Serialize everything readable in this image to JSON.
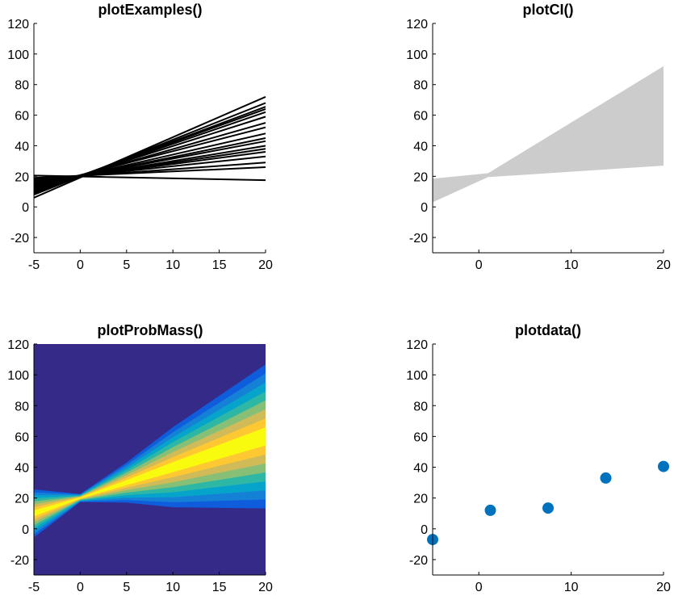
{
  "chart_data": [
    {
      "type": "line",
      "title": "plotExamples()",
      "xlim": [
        -5,
        20
      ],
      "ylim": [
        -30,
        120
      ],
      "xticks": [
        -5,
        0,
        5,
        10,
        15,
        20
      ],
      "yticks": [
        -20,
        0,
        20,
        40,
        60,
        80,
        100,
        120
      ],
      "line_color": "#000000",
      "series": [
        {
          "x": [
            -5,
            20
          ],
          "y": [
            20.5,
            17.5
          ]
        },
        {
          "x": [
            -5,
            20
          ],
          "y": [
            19,
            26
          ]
        },
        {
          "x": [
            -5,
            20
          ],
          "y": [
            18,
            29
          ]
        },
        {
          "x": [
            -5,
            20
          ],
          "y": [
            17,
            33
          ]
        },
        {
          "x": [
            -5,
            20
          ],
          "y": [
            16,
            36
          ]
        },
        {
          "x": [
            -5,
            20
          ],
          "y": [
            15.5,
            38
          ]
        },
        {
          "x": [
            -5,
            20
          ],
          "y": [
            15,
            40
          ]
        },
        {
          "x": [
            -5,
            20
          ],
          "y": [
            14.5,
            43
          ]
        },
        {
          "x": [
            -5,
            20
          ],
          "y": [
            14,
            45
          ]
        },
        {
          "x": [
            -5,
            20
          ],
          "y": [
            13.5,
            48
          ]
        },
        {
          "x": [
            -5,
            20
          ],
          "y": [
            13,
            52
          ]
        },
        {
          "x": [
            -5,
            20
          ],
          "y": [
            12,
            55
          ]
        },
        {
          "x": [
            -5,
            20
          ],
          "y": [
            11,
            59
          ]
        },
        {
          "x": [
            -5,
            20
          ],
          "y": [
            10,
            62
          ]
        },
        {
          "x": [
            -5,
            20
          ],
          "y": [
            9.5,
            64
          ]
        },
        {
          "x": [
            -5,
            20
          ],
          "y": [
            9,
            65.5
          ]
        },
        {
          "x": [
            -5,
            20
          ],
          "y": [
            8,
            68
          ]
        },
        {
          "x": [
            -5,
            20
          ],
          "y": [
            6,
            72
          ]
        }
      ]
    },
    {
      "type": "area",
      "title": "plotCI()",
      "xlim": [
        -5,
        20
      ],
      "ylim": [
        -30,
        120
      ],
      "xticks": [
        0,
        10,
        20
      ],
      "yticks": [
        -20,
        0,
        20,
        40,
        60,
        80,
        100,
        120
      ],
      "fill_color": "#cccccc",
      "x": [
        -5,
        1,
        20
      ],
      "upper": [
        18.5,
        22,
        92
      ],
      "lower": [
        3,
        19.5,
        27
      ]
    },
    {
      "type": "heatmap",
      "title": "plotProbMass()",
      "xlim": [
        -5,
        20
      ],
      "ylim": [
        -30,
        120
      ],
      "xticks": [
        -5,
        0,
        5,
        10,
        15,
        20
      ],
      "yticks": [
        -20,
        0,
        20,
        40,
        60,
        80,
        100,
        120
      ],
      "colors": [
        "#352a87",
        "#0f5cdd",
        "#1481d6",
        "#06a4ca",
        "#2eb7a4",
        "#87bf77",
        "#d1bb59",
        "#fec832",
        "#f9fb0e"
      ],
      "background": "#352a87",
      "x": [
        -5,
        0,
        5,
        10,
        15,
        20
      ],
      "center": [
        10,
        20,
        30,
        40,
        50,
        60
      ],
      "spread": [
        6,
        1,
        5,
        10,
        14,
        18
      ]
    },
    {
      "type": "scatter",
      "title": "plotdata()",
      "xlim": [
        -5,
        20
      ],
      "ylim": [
        -30,
        120
      ],
      "xticks": [
        0,
        10,
        20
      ],
      "yticks": [
        -20,
        0,
        20,
        40,
        60,
        80,
        100,
        120
      ],
      "marker_color": "#0072bd",
      "x": [
        -5,
        1.25,
        7.5,
        13.75,
        20
      ],
      "y": [
        -7,
        12,
        13.5,
        33,
        40.5
      ]
    }
  ]
}
